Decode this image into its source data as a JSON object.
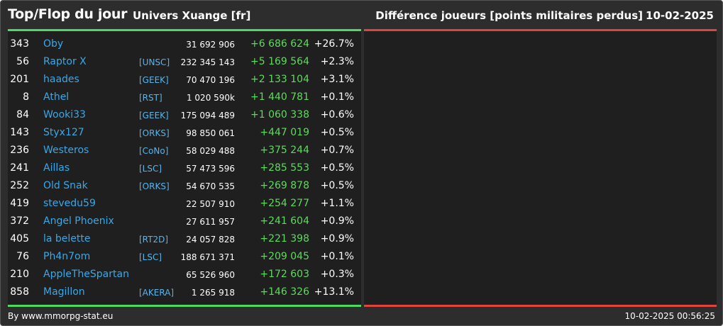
{
  "header": {
    "title": "Top/Flop du jour",
    "universe": "Univers Xuange [fr]",
    "metric": "Différence joueurs [points militaires perdus]",
    "date": "10-02-2025"
  },
  "colors": {
    "background": "#2d2d2d",
    "panel": "#1f1f1f",
    "top_accent": "#4cd964",
    "flop_accent": "#e0443c",
    "name": "#3aa8e8",
    "gain": "#5ddb5d"
  },
  "rows": [
    {
      "rank": "343",
      "name": "Oby",
      "alliance": "",
      "points": "31 692 906",
      "diff": "+6 686 624",
      "pct": "+26.7%"
    },
    {
      "rank": "56",
      "name": "Raptor X",
      "alliance": "[UNSC]",
      "points": "232 345 143",
      "diff": "+5 169 564",
      "pct": "+2.3%"
    },
    {
      "rank": "201",
      "name": "haades",
      "alliance": "[GEEK]",
      "points": "70 470 196",
      "diff": "+2 133 104",
      "pct": "+3.1%"
    },
    {
      "rank": "8",
      "name": "Athel",
      "alliance": "[RST]",
      "points": "1 020 590k",
      "diff": "+1 440 781",
      "pct": "+0.1%"
    },
    {
      "rank": "84",
      "name": "Wooki33",
      "alliance": "[GEEK]",
      "points": "175 094 489",
      "diff": "+1 060 338",
      "pct": "+0.6%"
    },
    {
      "rank": "143",
      "name": "Styx127",
      "alliance": "[ORKS]",
      "points": "98 850 061",
      "diff": "+447 019",
      "pct": "+0.5%"
    },
    {
      "rank": "236",
      "name": "Westeros",
      "alliance": "[CoNo]",
      "points": "58 029 488",
      "diff": "+375 244",
      "pct": "+0.7%"
    },
    {
      "rank": "241",
      "name": "Aillas",
      "alliance": "[LSC]",
      "points": "57 473 596",
      "diff": "+285 553",
      "pct": "+0.5%"
    },
    {
      "rank": "252",
      "name": "Old Snak",
      "alliance": "[ORKS]",
      "points": "54 670 535",
      "diff": "+269 878",
      "pct": "+0.5%"
    },
    {
      "rank": "419",
      "name": "stevedu59",
      "alliance": "",
      "points": "22 507 910",
      "diff": "+254 277",
      "pct": "+1.1%"
    },
    {
      "rank": "372",
      "name": "Angel Phoenix",
      "alliance": "",
      "points": "27 611 957",
      "diff": "+241 604",
      "pct": "+0.9%"
    },
    {
      "rank": "405",
      "name": "la belette",
      "alliance": "[RT2D]",
      "points": "24 057 828",
      "diff": "+221 398",
      "pct": "+0.9%"
    },
    {
      "rank": "76",
      "name": "Ph4n7om",
      "alliance": "[LSC]",
      "points": "188 671 371",
      "diff": "+209 045",
      "pct": "+0.1%"
    },
    {
      "rank": "210",
      "name": "AppleTheSpartan",
      "alliance": "",
      "points": "65 526 960",
      "diff": "+172 603",
      "pct": "+0.3%"
    },
    {
      "rank": "858",
      "name": "Magillon",
      "alliance": "[AKERA]",
      "points": "1 265 918",
      "diff": "+146 326",
      "pct": "+13.1%"
    }
  ],
  "footer": {
    "source": "By www.mmorpg-stat.eu",
    "timestamp": "10-02-2025 00:56:25"
  }
}
